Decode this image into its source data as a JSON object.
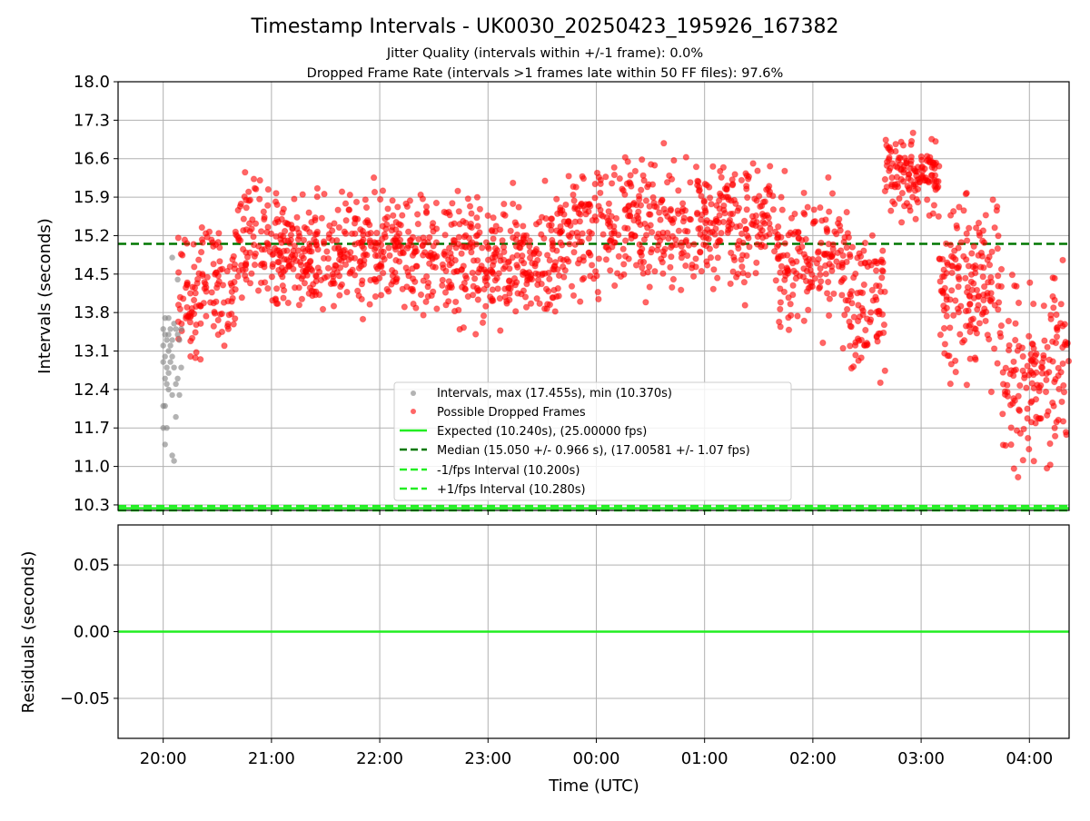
{
  "title": "Timestamp Intervals - UK0030_20250423_195926_167382",
  "subtitle_lines": [
    "Jitter Quality (intervals within +/-1 frame): 0.0%",
    "Dropped Frame Rate (intervals >1 frames late within 50 FF files): 97.6%"
  ],
  "chart_data": [
    {
      "type": "scatter",
      "name": "intervals",
      "ylabel": "Intervals (seconds)",
      "ylim": [
        10.2,
        18.0
      ],
      "yticks": [
        "10.3",
        "11.0",
        "11.7",
        "12.4",
        "13.1",
        "13.8",
        "14.5",
        "15.2",
        "15.9",
        "16.6",
        "17.3",
        "18.0"
      ],
      "xlim": [
        "2025-04-23 19:35",
        "2025-04-24 04:22"
      ],
      "grid": true,
      "legend_position": "bottom-center",
      "series": [
        {
          "name": "Intervals, max (17.455s), min (10.370s)",
          "kind": "scatter",
          "color": "#808080",
          "points": [
            [
              "20:00",
              13.5
            ],
            [
              "20:00",
              13.2
            ],
            [
              "20:00",
              12.9
            ],
            [
              "20:00",
              12.1
            ],
            [
              "20:00",
              11.7
            ],
            [
              "20:01",
              13.7
            ],
            [
              "20:01",
              13.4
            ],
            [
              "20:01",
              13.0
            ],
            [
              "20:01",
              12.6
            ],
            [
              "20:01",
              12.1
            ],
            [
              "20:01",
              11.4
            ],
            [
              "20:02",
              13.3
            ],
            [
              "20:02",
              12.8
            ],
            [
              "20:02",
              12.5
            ],
            [
              "20:02",
              11.7
            ],
            [
              "20:03",
              13.7
            ],
            [
              "20:03",
              13.4
            ],
            [
              "20:03",
              13.1
            ],
            [
              "20:03",
              12.7
            ],
            [
              "20:03",
              12.4
            ],
            [
              "20:04",
              13.5
            ],
            [
              "20:04",
              13.2
            ],
            [
              "20:04",
              12.9
            ],
            [
              "20:05",
              14.8
            ],
            [
              "20:05",
              13.3
            ],
            [
              "20:05",
              13.0
            ],
            [
              "20:05",
              12.3
            ],
            [
              "20:05",
              11.2
            ],
            [
              "20:06",
              13.6
            ],
            [
              "20:06",
              12.8
            ],
            [
              "20:06",
              11.1
            ],
            [
              "20:07",
              13.5
            ],
            [
              "20:07",
              12.5
            ],
            [
              "20:07",
              11.9
            ],
            [
              "20:08",
              14.4
            ],
            [
              "20:08",
              13.4
            ],
            [
              "20:08",
              12.6
            ],
            [
              "20:09",
              13.3
            ],
            [
              "20:09",
              12.3
            ],
            [
              "20:10",
              13.5
            ],
            [
              "20:10",
              12.8
            ]
          ]
        },
        {
          "name": "Possible Dropped Frames",
          "kind": "scatter",
          "color": "#ff0000",
          "approx_count": 2100,
          "clusters": [
            {
              "time": "20:08-20:20",
              "y_min": 12.5,
              "y_max": 15.8
            },
            {
              "time": "20:20-20:40",
              "y_min": 12.5,
              "y_max": 16.0
            },
            {
              "time": "20:40-21:00",
              "y_min": 13.6,
              "y_max": 16.8
            },
            {
              "time": "21:00-22:20",
              "y_min": 13.4,
              "y_max": 16.4
            },
            {
              "time": "22:20-23:40",
              "y_min": 13.1,
              "y_max": 16.5
            },
            {
              "time": "23:40-01:40",
              "y_min": 13.7,
              "y_max": 17.1
            },
            {
              "time": "01:40-02:20",
              "y_min": 13.0,
              "y_max": 16.7
            },
            {
              "time": "02:20-02:40",
              "y_min": 12.0,
              "y_max": 15.9
            },
            {
              "time": "02:40-03:10",
              "y_min": 15.2,
              "y_max": 17.4
            },
            {
              "time": "03:10-03:45",
              "y_min": 11.8,
              "y_max": 16.6
            },
            {
              "time": "03:45-04:22",
              "y_min": 10.4,
              "y_max": 15.0
            }
          ]
        },
        {
          "name": "Expected (10.240s), (25.00000 fps)",
          "kind": "hline",
          "y": 10.24,
          "color": "#22ee22",
          "style": "solid"
        },
        {
          "name": "Median (15.050 +/- 0.966 s), (17.00581 +/- 1.07 fps)",
          "kind": "hline",
          "y": 15.05,
          "color": "#007700",
          "style": "dashed"
        },
        {
          "name": "-1/fps Interval (10.200s)",
          "kind": "hline",
          "y": 10.2,
          "color": "#22ee22",
          "style": "dashed"
        },
        {
          "name": "+1/fps Interval (10.280s)",
          "kind": "hline",
          "y": 10.28,
          "color": "#22ee22",
          "style": "dashed"
        }
      ]
    },
    {
      "type": "line",
      "name": "residuals",
      "ylabel": "Residuals (seconds)",
      "xlabel": "Time (UTC)",
      "ylim": [
        -0.08,
        0.08
      ],
      "yticks": [
        "0.05",
        "0.00",
        "−0.05"
      ],
      "xticks": [
        "20:00",
        "21:00",
        "22:00",
        "23:00",
        "00:00",
        "01:00",
        "02:00",
        "03:00",
        "04:00"
      ],
      "grid": true,
      "series": [
        {
          "name": "Residuals",
          "kind": "hline",
          "y": 0.0,
          "color": "#22ee22",
          "style": "solid"
        }
      ]
    }
  ]
}
